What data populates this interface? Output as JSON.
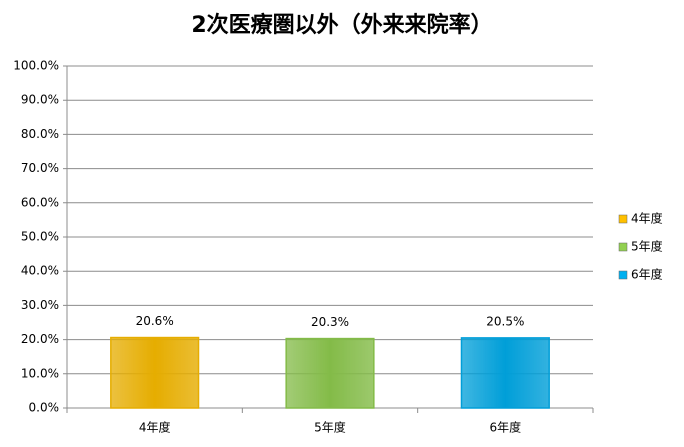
{
  "chart_data": {
    "type": "bar",
    "title": "2次医療圏以外（外来来院率）",
    "categories": [
      "4年度",
      "5年度",
      "6年度"
    ],
    "values": [
      20.6,
      20.3,
      20.5
    ],
    "value_labels": [
      "20.6%",
      "20.3%",
      "20.5%"
    ],
    "colors": [
      "#ffc000",
      "#92d050",
      "#00b0f0"
    ],
    "ylim": [
      0,
      100
    ],
    "yticks": [
      {
        "value": 0,
        "label": "0.0%"
      },
      {
        "value": 10,
        "label": "10.0%"
      },
      {
        "value": 20,
        "label": "20.0%"
      },
      {
        "value": 30,
        "label": "30.0%"
      },
      {
        "value": 40,
        "label": "40.0%"
      },
      {
        "value": 50,
        "label": "50.0%"
      },
      {
        "value": 60,
        "label": "60.0%"
      },
      {
        "value": 70,
        "label": "70.0%"
      },
      {
        "value": 80,
        "label": "80.0%"
      },
      {
        "value": 90,
        "label": "90.0%"
      },
      {
        "value": 100,
        "label": "100.0%"
      }
    ],
    "grid": true,
    "legend": "right"
  }
}
